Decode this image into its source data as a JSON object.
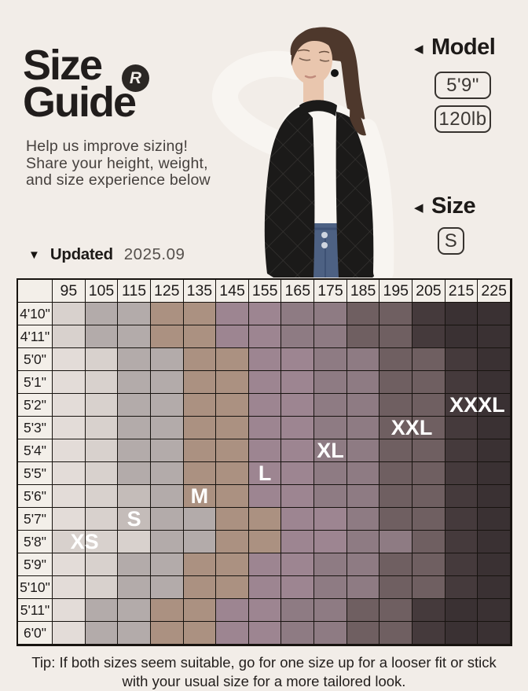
{
  "page": {
    "background": "#f2ede8"
  },
  "header": {
    "title_line1": "Size",
    "title_line2": "Guide",
    "logo_letter": "R",
    "subtitle_lines": [
      "Help us improve sizing!",
      "Share your height, weight,",
      "and size experience below"
    ]
  },
  "model_info": {
    "arrow_glyph": "◀",
    "model_heading": "Model",
    "model_height": "5'9\"",
    "model_weight": "120lb",
    "size_heading": "Size",
    "model_size": "S"
  },
  "updated": {
    "marker_glyph": "▼",
    "label": "Updated",
    "date": "2025.09"
  },
  "chart_data": {
    "type": "heatmap",
    "title": "Size Guide",
    "columns": [
      "95",
      "105",
      "115",
      "125",
      "135",
      "145",
      "155",
      "165",
      "175",
      "185",
      "195",
      "205",
      "215",
      "225"
    ],
    "rows": [
      "4'10\"",
      "4'11\"",
      "5'0\"",
      "5'1\"",
      "5'2\"",
      "5'3\"",
      "5'4\"",
      "5'5\"",
      "5'6\"",
      "5'7\"",
      "5'8\"",
      "5'9\"",
      "5'10\"",
      "5'11\"",
      "6'0\""
    ],
    "palette": [
      "#e3dcd8",
      "#d8d1cd",
      "#c4bcb9",
      "#b3abaa",
      "#ab9181",
      "#9d8591",
      "#8e7b83",
      "#6f5f61",
      "#453a3c",
      "#3a3133"
    ],
    "cell_palette_index": [
      [
        1,
        3,
        3,
        4,
        4,
        5,
        5,
        6,
        6,
        7,
        7,
        8,
        9,
        9
      ],
      [
        1,
        3,
        3,
        4,
        4,
        5,
        5,
        6,
        6,
        7,
        7,
        8,
        9,
        9
      ],
      [
        0,
        1,
        3,
        3,
        4,
        4,
        5,
        5,
        6,
        6,
        7,
        7,
        8,
        9
      ],
      [
        0,
        1,
        3,
        3,
        4,
        4,
        5,
        5,
        6,
        6,
        7,
        7,
        8,
        9
      ],
      [
        0,
        1,
        3,
        3,
        4,
        4,
        5,
        5,
        6,
        6,
        7,
        7,
        8,
        9
      ],
      [
        0,
        1,
        3,
        3,
        4,
        4,
        5,
        5,
        6,
        6,
        7,
        7,
        8,
        9
      ],
      [
        0,
        1,
        3,
        3,
        4,
        4,
        5,
        5,
        6,
        6,
        7,
        7,
        8,
        9
      ],
      [
        0,
        1,
        3,
        3,
        4,
        4,
        5,
        5,
        6,
        6,
        7,
        7,
        8,
        9
      ],
      [
        0,
        1,
        2,
        3,
        4,
        4,
        5,
        5,
        6,
        6,
        7,
        7,
        8,
        9
      ],
      [
        0,
        1,
        2,
        3,
        3,
        4,
        4,
        5,
        5,
        6,
        7,
        7,
        8,
        9
      ],
      [
        1,
        1,
        1,
        3,
        3,
        4,
        4,
        5,
        5,
        6,
        6,
        7,
        8,
        9
      ],
      [
        0,
        1,
        3,
        3,
        4,
        4,
        5,
        5,
        6,
        6,
        7,
        7,
        8,
        9
      ],
      [
        0,
        1,
        3,
        3,
        4,
        4,
        5,
        5,
        6,
        6,
        7,
        7,
        8,
        9
      ],
      [
        0,
        3,
        3,
        4,
        4,
        5,
        5,
        6,
        6,
        7,
        7,
        8,
        9,
        9
      ],
      [
        0,
        3,
        3,
        4,
        4,
        5,
        5,
        6,
        6,
        7,
        7,
        8,
        9,
        9
      ]
    ],
    "size_labels": [
      {
        "text": "XS",
        "row": 10,
        "col": 0,
        "span": 2
      },
      {
        "text": "S",
        "row": 9,
        "col": 2,
        "span": 1
      },
      {
        "text": "M",
        "row": 8,
        "col": 4,
        "span": 1
      },
      {
        "text": "L",
        "row": 7,
        "col": 6,
        "span": 1
      },
      {
        "text": "XL",
        "row": 6,
        "col": 8,
        "span": 1
      },
      {
        "text": "XXL",
        "row": 5,
        "col": 10,
        "span": 2
      },
      {
        "text": "XXXL",
        "row": 4,
        "col": 12,
        "span": 2
      }
    ],
    "label_text_color": "#ffffff",
    "grid_line_color": "#17130f",
    "legend_position": "none",
    "grid": true
  },
  "figure_colors": {
    "vest": "#1b1a19",
    "quilt_line": "#383634",
    "shirt": "#f8f5f1",
    "jeans": "#4d6183",
    "jeans_seam": "#3e5174",
    "skin": "#e9c6ae",
    "hair": "#4e382c"
  },
  "tip": {
    "line1": "Tip: If both sizes seem suitable, go for one size up for a looser fit or stick",
    "line2": "with your usual size for a more tailored look."
  }
}
